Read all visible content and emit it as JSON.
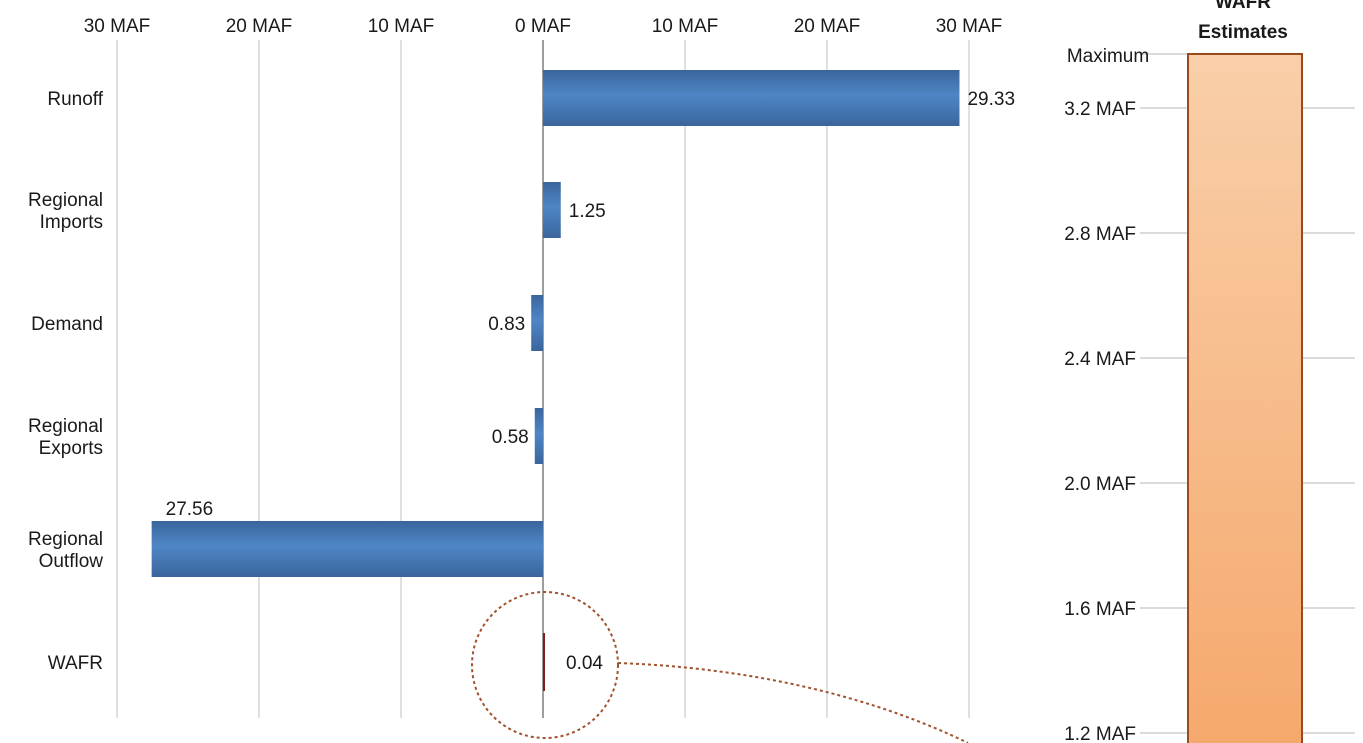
{
  "chart_data": [
    {
      "type": "bar",
      "orientation": "horizontal",
      "title": "",
      "xlabel": "",
      "ylabel": "",
      "xlim": [
        -30,
        30
      ],
      "x_ticks": [
        "30 MAF",
        "20 MAF",
        "10 MAF",
        "0 MAF",
        "10 MAF",
        "20 MAF",
        "30 MAF"
      ],
      "x_tick_values": [
        -30,
        -20,
        -10,
        0,
        10,
        20,
        30
      ],
      "grid": "vertical",
      "categories": [
        [
          "Runoff"
        ],
        [
          "Regional",
          "Imports"
        ],
        [
          "Demand"
        ],
        [
          "Regional",
          "Exports"
        ],
        [
          "Regional",
          "Outflow"
        ],
        [
          "WAFR"
        ]
      ],
      "values": [
        29.33,
        1.25,
        -0.83,
        -0.58,
        -27.56,
        0.04
      ],
      "labels": [
        "29.33",
        "1.25",
        "0.83",
        "0.58",
        "27.56",
        "0.04"
      ],
      "colors": {
        "bar": "#4a7ebb",
        "bar_dark": "#3a659c",
        "wafr_bar": "#7a1e1e",
        "highlight_circle": "#a0522d"
      }
    },
    {
      "type": "bar",
      "title": [
        "WAFR",
        "Estimates"
      ],
      "y_ticks": [
        "Maximum",
        "3.2 MAF",
        "2.8 MAF",
        "2.4 MAF",
        "2.0 MAF",
        "1.6 MAF",
        "1.2 MAF"
      ],
      "y_tick_values": [
        3.35,
        3.2,
        2.8,
        2.4,
        2.0,
        1.6,
        1.2
      ],
      "ylim": [
        1.2,
        3.35
      ],
      "grid": "horizontal",
      "colors": {
        "fill_top": "#f9cfa9",
        "fill_bottom": "#f5a86c",
        "stroke": "#9a4a1c"
      }
    }
  ]
}
